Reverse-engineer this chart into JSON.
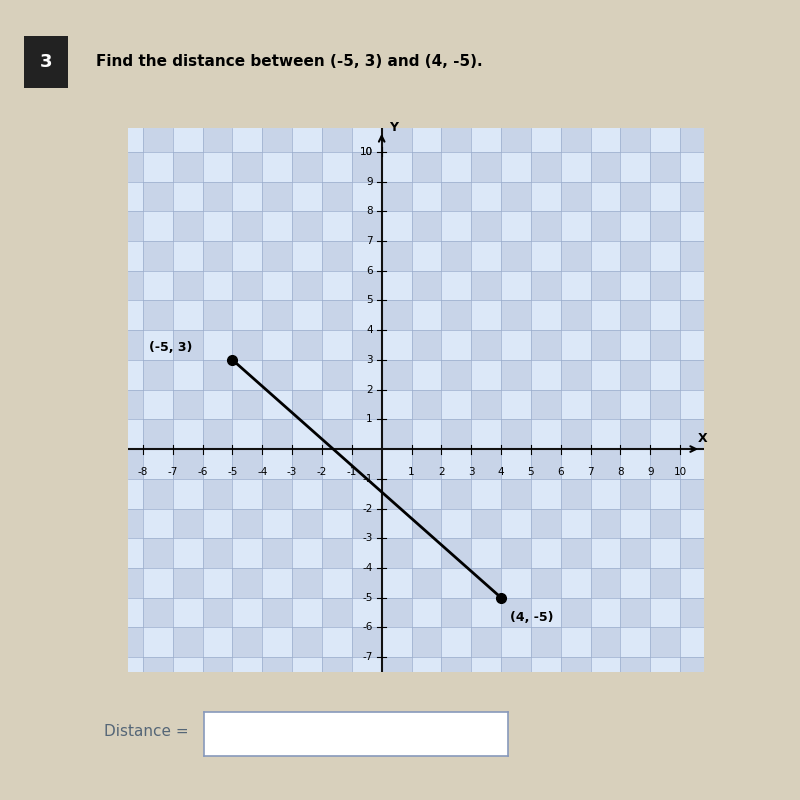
{
  "title": "Find the distance between (−5, 3) and (4, −5) .",
  "title_plain": "Find the distance between (-5, 3) and (4, -5).",
  "question_number": "3",
  "point1": [
    -5,
    3
  ],
  "point2": [
    4,
    -5
  ],
  "point1_label": "(-5, 3)",
  "point2_label": "(4, -5)",
  "xlim": [
    -8.5,
    10.8
  ],
  "ylim": [
    -7.5,
    10.8
  ],
  "xticks": [
    -8,
    -7,
    -6,
    -5,
    -4,
    -3,
    -2,
    -1,
    1,
    2,
    3,
    4,
    5,
    6,
    7,
    8,
    9,
    10
  ],
  "yticks": [
    -7,
    -6,
    -5,
    -4,
    -3,
    -2,
    -1,
    1,
    2,
    3,
    4,
    5,
    6,
    7,
    8,
    9,
    10
  ],
  "check_color1": "#c8d4e8",
  "check_color2": "#dce8f8",
  "line_color": "#000000",
  "point_color": "#000000",
  "axis_color": "#111111",
  "distance_label": "Distance =",
  "page_bg": "#c8c0a8",
  "content_bg": "#d8d0bc",
  "title_box_color": "#222222",
  "title_box_text_color": "#ffffff",
  "answer_box_border": "#8899bb"
}
